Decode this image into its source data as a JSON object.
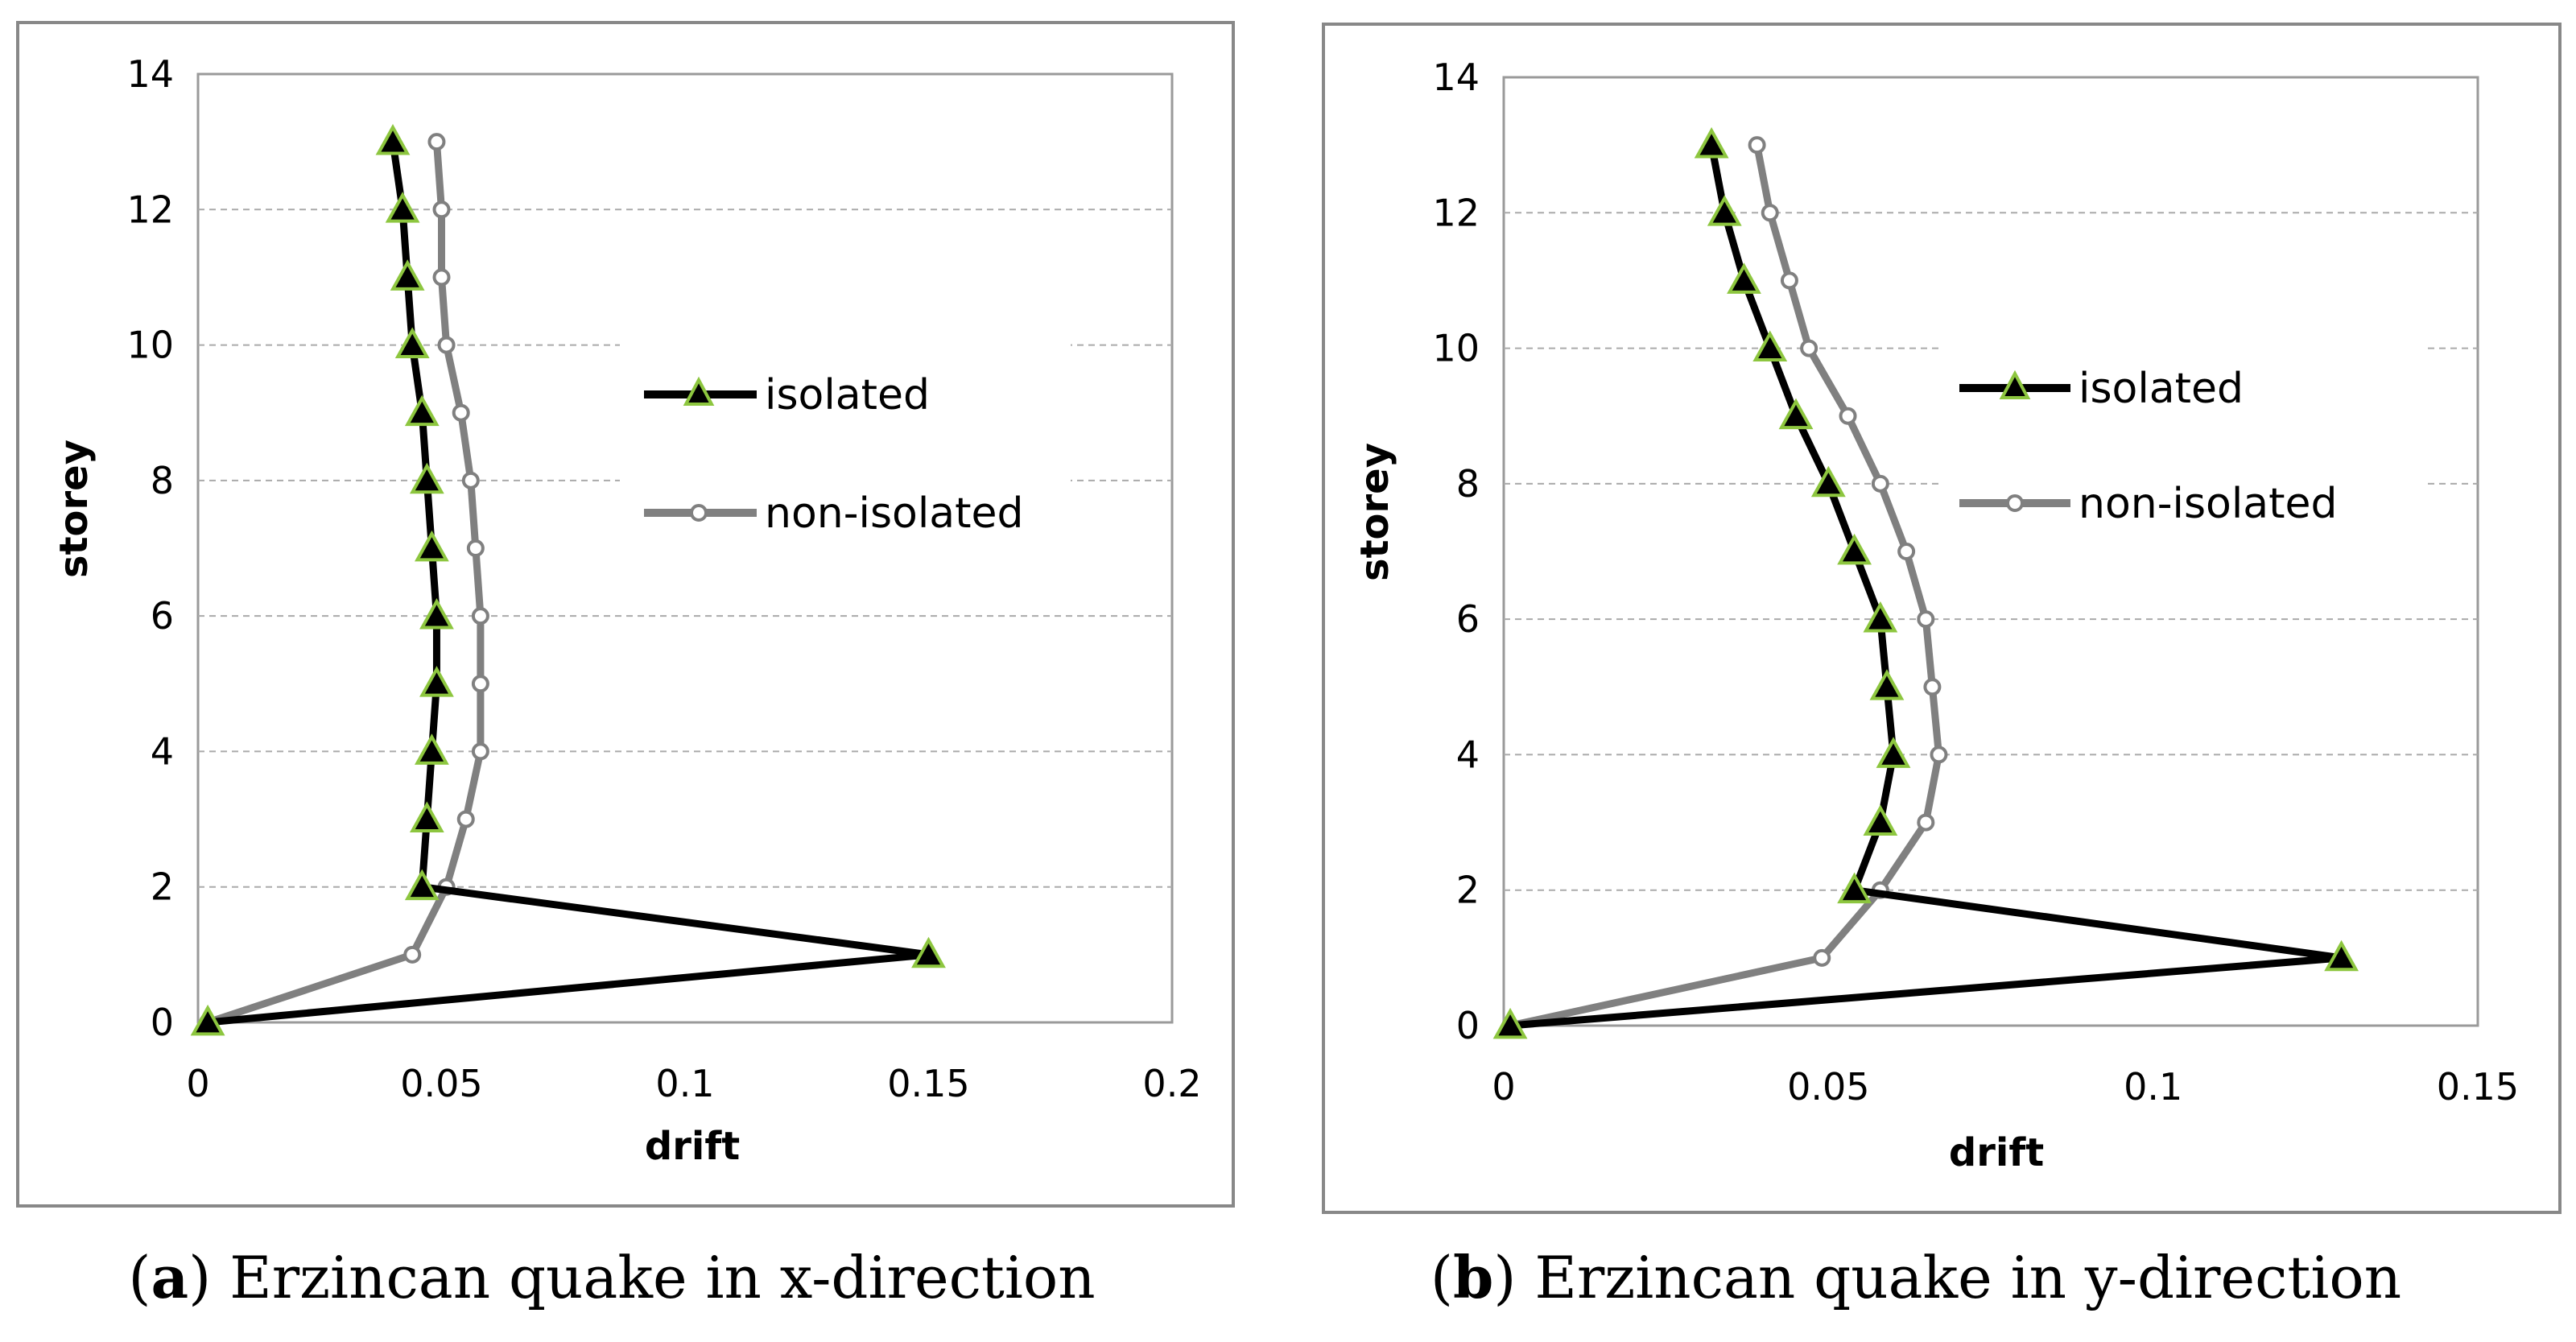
{
  "chart_data": [
    {
      "type": "line",
      "caption": {
        "letter": "a",
        "text": ") Erzincan quake in x-direction"
      },
      "xlabel": "drift",
      "ylabel": "storey",
      "xlim": [
        0,
        0.2
      ],
      "ylim": [
        0,
        14
      ],
      "xticks": [
        "0",
        "0.05",
        "0.1",
        "0.15",
        "0.2"
      ],
      "yticks": [
        "0",
        "2",
        "4",
        "6",
        "8",
        "10",
        "12",
        "14"
      ],
      "xtick_values": [
        0,
        0.05,
        0.1,
        0.15,
        0.2
      ],
      "ytick_values": [
        0,
        2,
        4,
        6,
        8,
        10,
        12,
        14
      ],
      "grid": "horizontal dashed",
      "legend_position": "center-right",
      "series": [
        {
          "name": "isolated",
          "color": "#000000",
          "marker_color": "#8dc63f",
          "points": [
            [
              0.002,
              0
            ],
            [
              0.15,
              1
            ],
            [
              0.046,
              2
            ],
            [
              0.047,
              3
            ],
            [
              0.048,
              4
            ],
            [
              0.049,
              5
            ],
            [
              0.049,
              6
            ],
            [
              0.048,
              7
            ],
            [
              0.047,
              8
            ],
            [
              0.046,
              9
            ],
            [
              0.044,
              10
            ],
            [
              0.043,
              11
            ],
            [
              0.042,
              12
            ],
            [
              0.04,
              13
            ]
          ]
        },
        {
          "name": "non-isolated",
          "color": "#808080",
          "marker_color": "#ffffff",
          "points": [
            [
              0.002,
              0
            ],
            [
              0.044,
              1
            ],
            [
              0.051,
              2
            ],
            [
              0.055,
              3
            ],
            [
              0.058,
              4
            ],
            [
              0.058,
              5
            ],
            [
              0.058,
              6
            ],
            [
              0.057,
              7
            ],
            [
              0.056,
              8
            ],
            [
              0.054,
              9
            ],
            [
              0.051,
              10
            ],
            [
              0.05,
              11
            ],
            [
              0.05,
              12
            ],
            [
              0.049,
              13
            ]
          ]
        }
      ]
    },
    {
      "type": "line",
      "caption": {
        "letter": "b",
        "text": ") Erzincan quake in y-direction"
      },
      "xlabel": "drift",
      "ylabel": "storey",
      "xlim": [
        0,
        0.15
      ],
      "ylim": [
        0,
        14
      ],
      "xticks": [
        "0",
        "0.05",
        "0.1",
        "0.15"
      ],
      "yticks": [
        "0",
        "2",
        "4",
        "6",
        "8",
        "10",
        "12",
        "14"
      ],
      "xtick_values": [
        0,
        0.05,
        0.1,
        0.15
      ],
      "ytick_values": [
        0,
        2,
        4,
        6,
        8,
        10,
        12,
        14
      ],
      "grid": "horizontal dashed",
      "legend_position": "center-right",
      "series": [
        {
          "name": "isolated",
          "color": "#000000",
          "marker_color": "#8dc63f",
          "points": [
            [
              0.001,
              0
            ],
            [
              0.129,
              1
            ],
            [
              0.054,
              2
            ],
            [
              0.058,
              3
            ],
            [
              0.06,
              4
            ],
            [
              0.059,
              5
            ],
            [
              0.058,
              6
            ],
            [
              0.054,
              7
            ],
            [
              0.05,
              8
            ],
            [
              0.045,
              9
            ],
            [
              0.041,
              10
            ],
            [
              0.037,
              11
            ],
            [
              0.034,
              12
            ],
            [
              0.032,
              13
            ]
          ]
        },
        {
          "name": "non-isolated",
          "color": "#808080",
          "marker_color": "#ffffff",
          "points": [
            [
              0.001,
              0
            ],
            [
              0.049,
              1
            ],
            [
              0.058,
              2
            ],
            [
              0.065,
              3
            ],
            [
              0.067,
              4
            ],
            [
              0.066,
              5
            ],
            [
              0.065,
              6
            ],
            [
              0.062,
              7
            ],
            [
              0.058,
              8
            ],
            [
              0.053,
              9
            ],
            [
              0.047,
              10
            ],
            [
              0.044,
              11
            ],
            [
              0.041,
              12
            ],
            [
              0.039,
              13
            ]
          ]
        }
      ]
    }
  ]
}
